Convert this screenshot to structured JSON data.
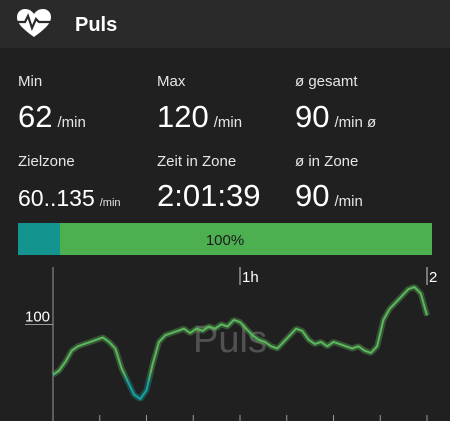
{
  "header": {
    "title": "Puls"
  },
  "stats": [
    {
      "label": "Min",
      "value": "62",
      "unit": "/min"
    },
    {
      "label": "Max",
      "value": "120",
      "unit": "/min"
    },
    {
      "label": "ø gesamt",
      "value": "90",
      "unit": "/min ø"
    },
    {
      "label": "Zielzone",
      "value": "60..135",
      "unit": "/min"
    },
    {
      "label": "Zeit in Zone",
      "value": "2:01:39"
    },
    {
      "label": "ø in Zone",
      "value": "90",
      "unit": "/min"
    }
  ],
  "zone_bar": {
    "label": "100%"
  },
  "chart_data": {
    "type": "line",
    "watermark": "Puls",
    "x": [
      0,
      2,
      4,
      6,
      8,
      10,
      12,
      14,
      16,
      18,
      20,
      22,
      24,
      26,
      28,
      30,
      32,
      34,
      36,
      38,
      40,
      42,
      44,
      46,
      48,
      50,
      52,
      54,
      56,
      58,
      60,
      62,
      64,
      66,
      68,
      70,
      72,
      74,
      76,
      78,
      80,
      82,
      84,
      86,
      88,
      90,
      92,
      94,
      96,
      98,
      100,
      102,
      104,
      106,
      108,
      110,
      112,
      114,
      116,
      118,
      120
    ],
    "series": [
      {
        "color": "#5cb85c",
        "low_color": "#17a2a0",
        "values": [
          73,
          75,
          79,
          84,
          86,
          87,
          88,
          89,
          90,
          88,
          85,
          76,
          70,
          64,
          62,
          66,
          78,
          88,
          91,
          92,
          93,
          94,
          92,
          94,
          93,
          95,
          94,
          96,
          95,
          98,
          97,
          94,
          91,
          89,
          88,
          86,
          85,
          88,
          91,
          94,
          93,
          89,
          87,
          88,
          86,
          88,
          87,
          86,
          85,
          86,
          84,
          83,
          86,
          98,
          103,
          106,
          109,
          112,
          113,
          110,
          100
        ]
      }
    ],
    "xlim": [
      0,
      121.6
    ],
    "ylim": [
      52,
      123
    ],
    "xticks": [
      {
        "value": 60,
        "label": "1h"
      },
      {
        "value": 120,
        "label": "2"
      }
    ],
    "xminorticks": [
      15,
      30,
      45,
      75,
      90,
      105
    ],
    "yticks": [
      100
    ]
  }
}
